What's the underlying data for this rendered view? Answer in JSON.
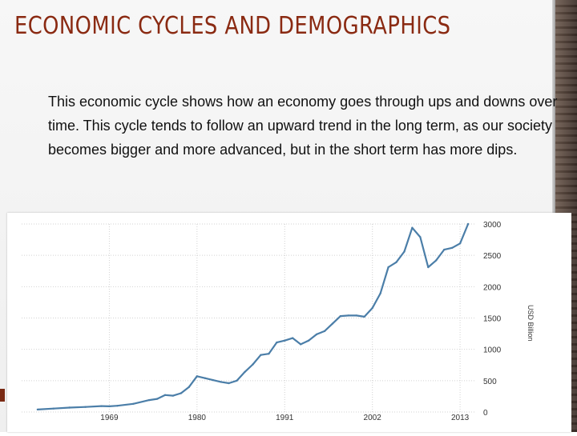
{
  "slide": {
    "title": "ECONOMIC CYCLES AND DEMOGRAPHICS",
    "body": "This economic cycle shows how an economy goes through ups and downs over time. This cycle tends to follow an upward trend in the long term, as our society becomes bigger and more advanced, but in the short term has more dips."
  },
  "colors": {
    "title": "#8a2a12",
    "line": "#4b7ea8",
    "grid": "#d2d2d2"
  },
  "chart_data": {
    "type": "line",
    "ylabel": "USD Billion",
    "ylim": [
      0,
      3000
    ],
    "y_ticks": [
      "0",
      "500",
      "1000",
      "1500",
      "2000",
      "2500",
      "3000"
    ],
    "x_ticks": [
      "1969",
      "1980",
      "1991",
      "2002",
      "2013"
    ],
    "series": [
      {
        "x": [
          1960,
          1962,
          1964,
          1966,
          1968,
          1969,
          1970,
          1972,
          1974,
          1975,
          1976,
          1977,
          1978,
          1979,
          1980,
          1981,
          1982,
          1983,
          1984,
          1985,
          1986,
          1987,
          1988,
          1989,
          1990,
          1991,
          1992,
          1993,
          1994,
          1995,
          1996,
          1997,
          1998,
          1999,
          2000,
          2001,
          2002,
          2003,
          2004,
          2005,
          2006,
          2007,
          2008,
          2009,
          2010,
          2011,
          2012,
          2013,
          2014
        ],
        "y": [
          40,
          55,
          70,
          80,
          95,
          90,
          100,
          130,
          190,
          210,
          270,
          260,
          300,
          400,
          570,
          540,
          510,
          480,
          460,
          500,
          640,
          760,
          910,
          930,
          1110,
          1140,
          1180,
          1080,
          1140,
          1240,
          1290,
          1410,
          1530,
          1540,
          1540,
          1520,
          1660,
          1890,
          2310,
          2390,
          2560,
          2940,
          2790,
          2310,
          2420,
          2590,
          2620,
          2690,
          3000
        ]
      }
    ]
  }
}
